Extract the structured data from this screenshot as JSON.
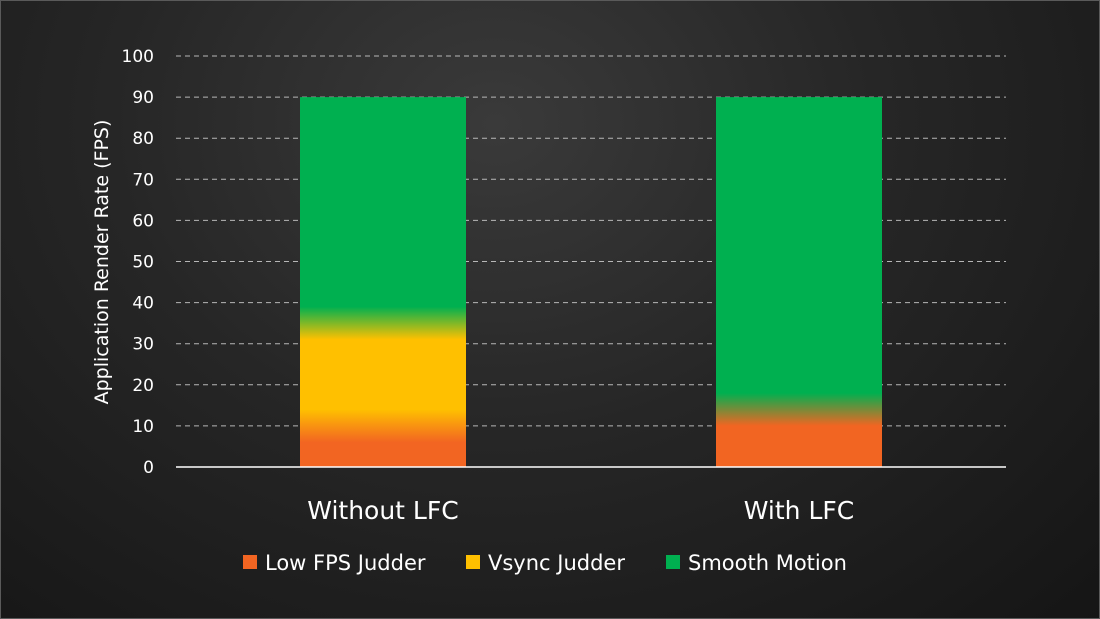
{
  "chart_data": {
    "type": "bar",
    "stacked": true,
    "title": "",
    "xlabel": "",
    "ylabel": "Application Render Rate (FPS)",
    "ylim": [
      0,
      100
    ],
    "yticks": [
      0,
      10,
      20,
      30,
      40,
      50,
      60,
      70,
      80,
      90,
      100
    ],
    "categories": [
      "Without LFC",
      "With LFC"
    ],
    "series": [
      {
        "name": "Low FPS Judder",
        "color": "#f26522",
        "values": [
          10,
          14
        ]
      },
      {
        "name": "Vsync Judder",
        "color": "#ffc000",
        "values": [
          25,
          0
        ]
      },
      {
        "name": "Smooth Motion",
        "color": "#00b050",
        "values": [
          55,
          76
        ]
      }
    ],
    "grid": true,
    "legend_position": "bottom"
  }
}
